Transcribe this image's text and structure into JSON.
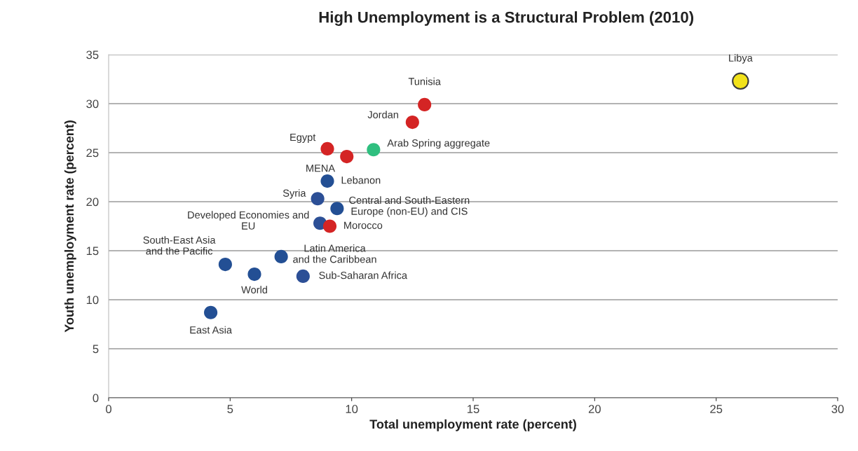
{
  "chart_data": {
    "type": "scatter",
    "title": "High Unemployment is a Structural Problem (2010)",
    "xlabel": "Total unemployment rate (percent)",
    "ylabel": "Youth unemployment rate (percent)",
    "x": [
      26.0,
      13.0,
      12.5,
      10.9,
      9.0,
      9.8,
      9.0,
      8.6,
      9.4,
      8.7,
      9.1,
      7.1,
      4.8,
      6.0,
      8.0,
      4.2
    ],
    "values": [
      32.3,
      29.9,
      28.1,
      25.3,
      25.4,
      24.6,
      22.1,
      20.3,
      19.3,
      17.8,
      17.5,
      14.4,
      13.6,
      12.6,
      12.4,
      8.7
    ],
    "colors": [
      "#f2e21a",
      "#d42424",
      "#d42424",
      "#2fbf7f",
      "#d42424",
      "#d42424",
      "#234f94",
      "#2c4f96",
      "#234f94",
      "#2c4f96",
      "#d42424",
      "#234f94",
      "#234f94",
      "#234f94",
      "#2c4f96",
      "#234f94"
    ],
    "annotations": [
      {
        "text": "Libya",
        "x": 26.0,
        "y": 32.3
      },
      {
        "text": "Tunisia",
        "x": 13.0,
        "y": 29.9
      },
      {
        "text": "Jordan",
        "x": 12.5,
        "y": 28.1
      },
      {
        "text": "Arab Spring aggregate",
        "x": 10.9,
        "y": 25.3
      },
      {
        "text": "Egypt",
        "x": 9.0,
        "y": 25.4
      },
      {
        "text": "MENA",
        "x": 9.8,
        "y": 24.6
      },
      {
        "text": "Lebanon",
        "x": 9.0,
        "y": 22.1
      },
      {
        "text": "Syria",
        "x": 8.6,
        "y": 20.3
      },
      {
        "text": "Central and South-Eastern\nEurope (non-EU) and CIS",
        "x": 9.4,
        "y": 19.3
      },
      {
        "text": "Developed Economies and\nEU",
        "x": 8.7,
        "y": 17.8
      },
      {
        "text": "Morocco",
        "x": 9.1,
        "y": 17.5
      },
      {
        "text": "Latin America\nand the Caribbean",
        "x": 7.1,
        "y": 14.4
      },
      {
        "text": "South-East Asia\nand the Pacific",
        "x": 4.8,
        "y": 13.6
      },
      {
        "text": "World",
        "x": 6.0,
        "y": 12.6
      },
      {
        "text": "Sub-Saharan Africa",
        "x": 8.0,
        "y": 12.4
      },
      {
        "text": "East Asia",
        "x": 4.2,
        "y": 8.7
      }
    ],
    "xlim": [
      0,
      30
    ],
    "ylim": [
      0,
      35
    ],
    "xticks": [
      0,
      5,
      10,
      15,
      20,
      25,
      30
    ],
    "yticks": [
      0,
      5,
      10,
      15,
      20,
      25,
      30,
      35
    ],
    "grid": "y",
    "marker": "circle"
  }
}
